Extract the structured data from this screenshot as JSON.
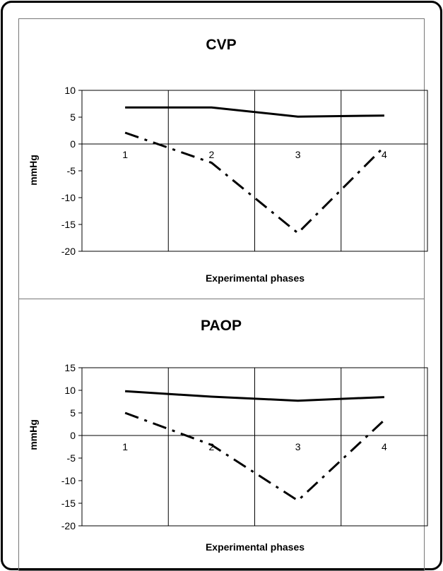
{
  "chart_data": [
    {
      "type": "line",
      "title": "CVP",
      "xlabel": "Experimental phases",
      "ylabel": "mmHg",
      "categories": [
        "1",
        "2",
        "3",
        "4"
      ],
      "ylim": [
        -20,
        10
      ],
      "yticks": [
        10,
        5,
        0,
        -5,
        -10,
        -15,
        -20
      ],
      "grid": true,
      "series": [
        {
          "values": [
            6.8,
            6.8,
            5.1,
            5.3
          ],
          "color": "#000000",
          "style": "solid"
        },
        {
          "values": [
            2.1,
            -3.5,
            -16.6,
            -0.5
          ],
          "color": "#000000",
          "style": "dash-dot"
        }
      ]
    },
    {
      "type": "line",
      "title": "PAOP",
      "xlabel": "Experimental phases",
      "ylabel": "mmHg",
      "categories": [
        "1",
        "2",
        "3",
        "4"
      ],
      "ylim": [
        -20,
        15
      ],
      "yticks": [
        15,
        10,
        5,
        0,
        -5,
        -10,
        -15,
        -20
      ],
      "grid": true,
      "series": [
        {
          "values": [
            9.8,
            8.6,
            7.7,
            8.5
          ],
          "color": "#000000",
          "style": "solid"
        },
        {
          "values": [
            5.0,
            -2.1,
            -14.4,
            3.4
          ],
          "color": "#000000",
          "style": "dash-dot"
        }
      ]
    }
  ]
}
